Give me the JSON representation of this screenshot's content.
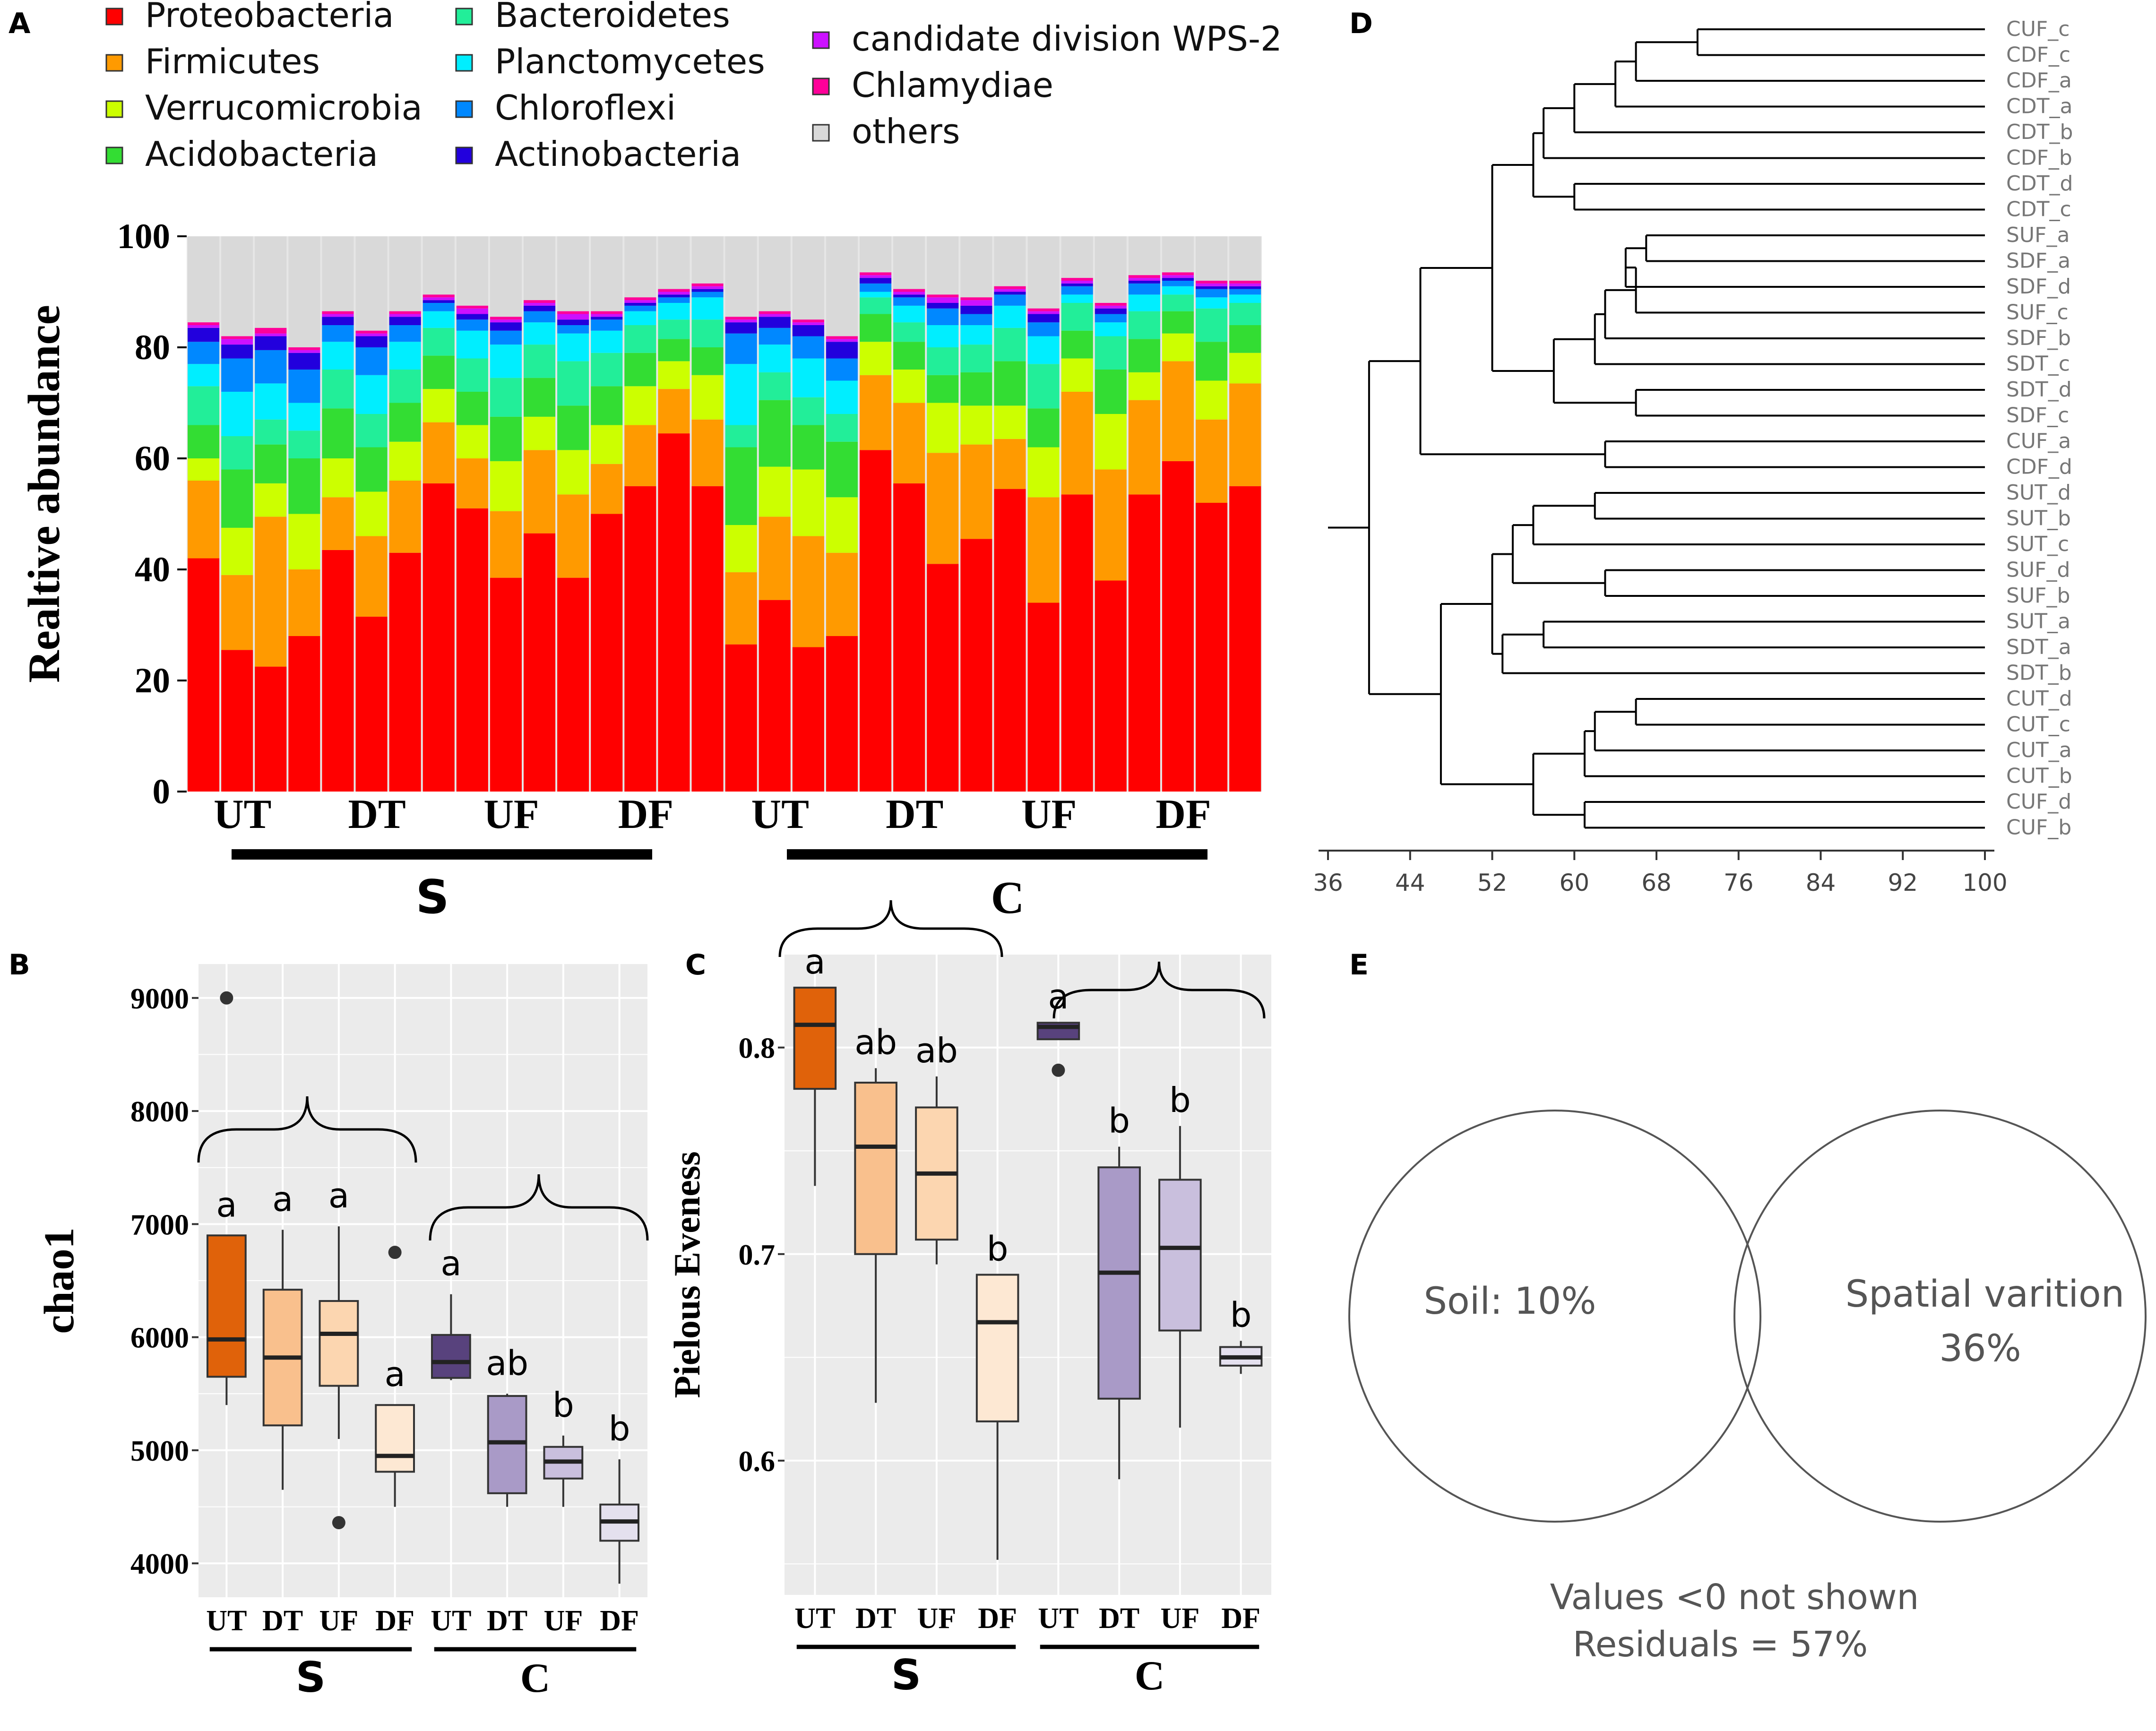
{
  "colors": {
    "Proteobacteria": "#ff0000",
    "Firmicutes": "#ff9a00",
    "Verrucomicrobia": "#ccff00",
    "Acidobacteria": "#33dd33",
    "Bacteroidetes": "#22ee99",
    "Planctomycetes": "#00eeff",
    "Chloroflexi": "#0088ff",
    "Actinobacteria": "#2200dd",
    "candidate division WPS-2": "#cc11ff",
    "Chlamydiae": "#ff0099",
    "others": "#d9d9d9",
    "panelBg": "#ebebeb",
    "S_dark": "#e0620a",
    "S_mid": "#f9c08d",
    "S_light": "#fcd6b0",
    "S_pale": "#fde8d3",
    "C_dark": "#58427d",
    "C_mid": "#a99ac7",
    "C_light": "#c9bfdd",
    "C_pale": "#e4e0ee"
  },
  "panel_labels": {
    "A": "A",
    "B": "B",
    "C": "C",
    "D": "D",
    "E": "E"
  },
  "chart_data": [
    {
      "id": "A",
      "type": "bar",
      "stacked": true,
      "ylabel": "Realtive abundance",
      "ylim": [
        0,
        100
      ],
      "yticks": [
        "0",
        "20",
        "40",
        "60",
        "80",
        "100"
      ],
      "legend": [
        "Proteobacteria",
        "Firmicutes",
        "Verrucomicrobia",
        "Acidobacteria",
        "Bacteroidetes",
        "Planctomycetes",
        "Chloroflexi",
        "Actinobacteria",
        "candidate division WPS-2",
        "Chlamydiae",
        "others"
      ],
      "group_labels": [
        "UT",
        "DT",
        "UF",
        "DF",
        "UT",
        "DT",
        "UF",
        "DF"
      ],
      "soil_labels": [
        "S",
        "C"
      ],
      "phyla_order": [
        "Proteobacteria",
        "Firmicutes",
        "Verrucomicrobia",
        "Acidobacteria",
        "Bacteroidetes",
        "Planctomycetes",
        "Chloroflexi",
        "Actinobacteria",
        "candidate division WPS-2",
        "Chlamydiae"
      ],
      "samples": [
        [
          42,
          14,
          4,
          6,
          7,
          4,
          4,
          2.5,
          0.5,
          0.5
        ],
        [
          25.5,
          13.5,
          8.5,
          10.5,
          6,
          8,
          6,
          2.5,
          1,
          0.5
        ],
        [
          22.5,
          27,
          6,
          7,
          4.5,
          6.5,
          6,
          2.5,
          0.5,
          1
        ],
        [
          28,
          12,
          10,
          10,
          5,
          5,
          6,
          3,
          0.5,
          0.5
        ],
        [
          43.5,
          9.5,
          7,
          9,
          7,
          5,
          3,
          1.5,
          0.5,
          0.5
        ],
        [
          31.5,
          14.5,
          8,
          8,
          6,
          7,
          5,
          2,
          0.5,
          0.5
        ],
        [
          43,
          13,
          7,
          7,
          6,
          5,
          3,
          1.5,
          0.5,
          0.5
        ],
        [
          55.5,
          11,
          6,
          6,
          5,
          3,
          1.5,
          0.5,
          0.5,
          0.5
        ],
        [
          51,
          9,
          6,
          6,
          6,
          5,
          2,
          1,
          1,
          0.5
        ],
        [
          38.5,
          12,
          9,
          8,
          7,
          6,
          2.5,
          1.5,
          0.5,
          0.5
        ],
        [
          46.5,
          15,
          6,
          7,
          6,
          4,
          2,
          1,
          0.5,
          0.5
        ],
        [
          38.5,
          15,
          8,
          8,
          8,
          5,
          1.5,
          1,
          1,
          0.5
        ],
        [
          50,
          9,
          7,
          7,
          6,
          4,
          2,
          0.5,
          0.5,
          0.5
        ],
        [
          55,
          11,
          7,
          6,
          5,
          2.5,
          1,
          0.5,
          0.5,
          0.5
        ],
        [
          64.5,
          8,
          5,
          4,
          3.5,
          3,
          1,
          0.5,
          0.5,
          0.5
        ],
        [
          55,
          12,
          8,
          5,
          5,
          4,
          1,
          0.5,
          0.5,
          0.5
        ],
        [
          26.5,
          13,
          8.5,
          14,
          4,
          11,
          5.5,
          2,
          0.5,
          0.5
        ],
        [
          34.5,
          15,
          9,
          12,
          5,
          5,
          3,
          2,
          0.5,
          0.5
        ],
        [
          26,
          20,
          12,
          8,
          5,
          7,
          4,
          2,
          0.5,
          0.5
        ],
        [
          28,
          15,
          10,
          10,
          5,
          6,
          4,
          3,
          0.5,
          0.5
        ],
        [
          61.5,
          13.5,
          6,
          5,
          3,
          1,
          1.5,
          1,
          0.5,
          0.5
        ],
        [
          55.5,
          14.5,
          6,
          5,
          3.5,
          3,
          1.5,
          0.5,
          0.5,
          0.5
        ],
        [
          41,
          20,
          9,
          5,
          5,
          4,
          3,
          1,
          1,
          0.5
        ],
        [
          45.5,
          17,
          7,
          6,
          5,
          3.5,
          2,
          1.5,
          1,
          0.5
        ],
        [
          54.5,
          9,
          6,
          8,
          6,
          4,
          2,
          0.5,
          0.5,
          0.5
        ],
        [
          34,
          19,
          9,
          7,
          8,
          5,
          2.5,
          1.5,
          0.5,
          0.5
        ],
        [
          53.5,
          18.5,
          6,
          5,
          5,
          1.5,
          1.5,
          0.5,
          0.5,
          0.5
        ],
        [
          38,
          20,
          10,
          8,
          6,
          2.5,
          1.5,
          1,
          0.5,
          0.5
        ],
        [
          53.5,
          17,
          5,
          6,
          5,
          3,
          2,
          0.5,
          0.5,
          0.5
        ],
        [
          59.5,
          18,
          5,
          4,
          3,
          1.5,
          1,
          0.5,
          0.5,
          0.5
        ],
        [
          52,
          15,
          7,
          7,
          6,
          2,
          1.5,
          0.5,
          0.5,
          0.5
        ],
        [
          55,
          18.5,
          5.5,
          5,
          4,
          1.5,
          1,
          0.5,
          0.5,
          0.5
        ]
      ]
    },
    {
      "id": "B",
      "type": "box",
      "ylabel": "chao1",
      "ylim": [
        3700,
        9300
      ],
      "yticks": [
        "4000",
        "5000",
        "6000",
        "7000",
        "8000",
        "9000"
      ],
      "categories": [
        "UT",
        "DT",
        "UF",
        "DF",
        "UT",
        "DT",
        "UF",
        "DF"
      ],
      "soil_labels": [
        "S",
        "C"
      ],
      "boxes": [
        {
          "min": 5400,
          "q1": 5650,
          "median": 5980,
          "q3": 6900,
          "max": 6900,
          "outliers": [
            9000
          ],
          "letter": "a"
        },
        {
          "min": 4650,
          "q1": 5220,
          "median": 5820,
          "q3": 6420,
          "max": 6950,
          "outliers": [],
          "letter": "a"
        },
        {
          "min": 5100,
          "q1": 5570,
          "median": 6030,
          "q3": 6320,
          "max": 6980,
          "outliers": [
            4360
          ],
          "letter": "a"
        },
        {
          "min": 4500,
          "q1": 4810,
          "median": 4950,
          "q3": 5400,
          "max": 5400,
          "outliers": [
            6750
          ],
          "letter": "a"
        },
        {
          "min": 5620,
          "q1": 5640,
          "median": 5780,
          "q3": 6020,
          "max": 6380,
          "outliers": [],
          "letter": "a"
        },
        {
          "min": 4500,
          "q1": 4620,
          "median": 5070,
          "q3": 5480,
          "max": 5500,
          "outliers": [],
          "letter": "ab"
        },
        {
          "min": 4500,
          "q1": 4750,
          "median": 4900,
          "q3": 5030,
          "max": 5130,
          "outliers": [],
          "letter": "b"
        },
        {
          "min": 3820,
          "q1": 4200,
          "median": 4370,
          "q3": 4520,
          "max": 4920,
          "outliers": [],
          "letter": "b"
        }
      ]
    },
    {
      "id": "C",
      "type": "box",
      "ylabel": "Pielous Eveness",
      "ylim": [
        0.535,
        0.845
      ],
      "yticks": [
        "0.6",
        "0.7",
        "0.8"
      ],
      "categories": [
        "UT",
        "DT",
        "UF",
        "DF",
        "UT",
        "DT",
        "UF",
        "DF"
      ],
      "soil_labels": [
        "S",
        "C"
      ],
      "boxes": [
        {
          "min": 0.733,
          "q1": 0.78,
          "median": 0.811,
          "q3": 0.829,
          "max": 0.829,
          "outliers": [],
          "letter": "a"
        },
        {
          "min": 0.628,
          "q1": 0.7,
          "median": 0.752,
          "q3": 0.783,
          "max": 0.79,
          "outliers": [],
          "letter": "ab"
        },
        {
          "min": 0.695,
          "q1": 0.707,
          "median": 0.739,
          "q3": 0.771,
          "max": 0.786,
          "outliers": [],
          "letter": "ab"
        },
        {
          "min": 0.552,
          "q1": 0.619,
          "median": 0.667,
          "q3": 0.69,
          "max": 0.69,
          "outliers": [],
          "letter": "b"
        },
        {
          "min": 0.804,
          "q1": 0.804,
          "median": 0.81,
          "q3": 0.812,
          "max": 0.812,
          "outliers": [
            0.789
          ],
          "letter": "a"
        },
        {
          "min": 0.591,
          "q1": 0.63,
          "median": 0.691,
          "q3": 0.742,
          "max": 0.752,
          "outliers": [],
          "letter": "b"
        },
        {
          "min": 0.616,
          "q1": 0.663,
          "median": 0.703,
          "q3": 0.736,
          "max": 0.762,
          "outliers": [],
          "letter": "b"
        },
        {
          "min": 0.642,
          "q1": 0.646,
          "median": 0.65,
          "q3": 0.655,
          "max": 0.658,
          "outliers": [],
          "letter": "b"
        }
      ]
    },
    {
      "id": "D",
      "type": "dendrogram",
      "xlim": [
        36,
        100
      ],
      "xticks": [
        "36",
        "44",
        "52",
        "60",
        "68",
        "76",
        "84",
        "92",
        "100"
      ],
      "leaves": [
        "CUF_c",
        "CDF_c",
        "CDF_a",
        "CDT_a",
        "CDT_b",
        "CDF_b",
        "CDT_d",
        "CDT_c",
        "SUF_a",
        "SDF_a",
        "SDF_d",
        "SUF_c",
        "SDF_b",
        "SDT_c",
        "SDT_d",
        "SDF_c",
        "CUF_a",
        "CDF_d",
        "SUT_d",
        "SUT_b",
        "SUT_c",
        "SUF_d",
        "SUF_b",
        "SUT_a",
        "SDT_a",
        "SDT_b",
        "CUT_d",
        "CUT_c",
        "CUT_a",
        "CUT_b",
        "CUF_d",
        "CUF_b"
      ],
      "merges": [
        [
          0,
          1,
          72
        ],
        [
          0,
          2,
          66
        ],
        [
          0,
          3,
          64
        ],
        [
          0,
          4,
          60
        ],
        [
          0,
          5,
          57
        ],
        [
          6,
          7,
          60
        ],
        [
          0,
          6,
          56
        ],
        [
          8,
          9,
          67
        ],
        [
          8,
          10,
          65
        ],
        [
          8,
          11,
          66
        ],
        [
          8,
          12,
          63
        ],
        [
          8,
          13,
          62
        ],
        [
          14,
          15,
          66
        ],
        [
          8,
          14,
          58
        ],
        [
          0,
          8,
          52
        ],
        [
          16,
          17,
          63
        ],
        [
          0,
          16,
          45
        ],
        [
          18,
          19,
          62
        ],
        [
          18,
          20,
          56
        ],
        [
          21,
          22,
          63
        ],
        [
          18,
          21,
          54
        ],
        [
          23,
          24,
          57
        ],
        [
          23,
          25,
          53
        ],
        [
          18,
          23,
          52
        ],
        [
          26,
          27,
          66
        ],
        [
          26,
          28,
          62
        ],
        [
          26,
          29,
          61
        ],
        [
          30,
          31,
          61
        ],
        [
          26,
          30,
          56
        ],
        [
          18,
          26,
          47
        ],
        [
          0,
          18,
          40
        ],
        [
          0,
          0,
          36
        ]
      ]
    },
    {
      "id": "E",
      "type": "venn",
      "sets": [
        {
          "label": "Soil: 10%"
        },
        {
          "label": "Spatial varition",
          "value": "36%"
        }
      ],
      "notes": [
        "Values <0 not shown",
        "Residuals = 57%"
      ]
    }
  ]
}
